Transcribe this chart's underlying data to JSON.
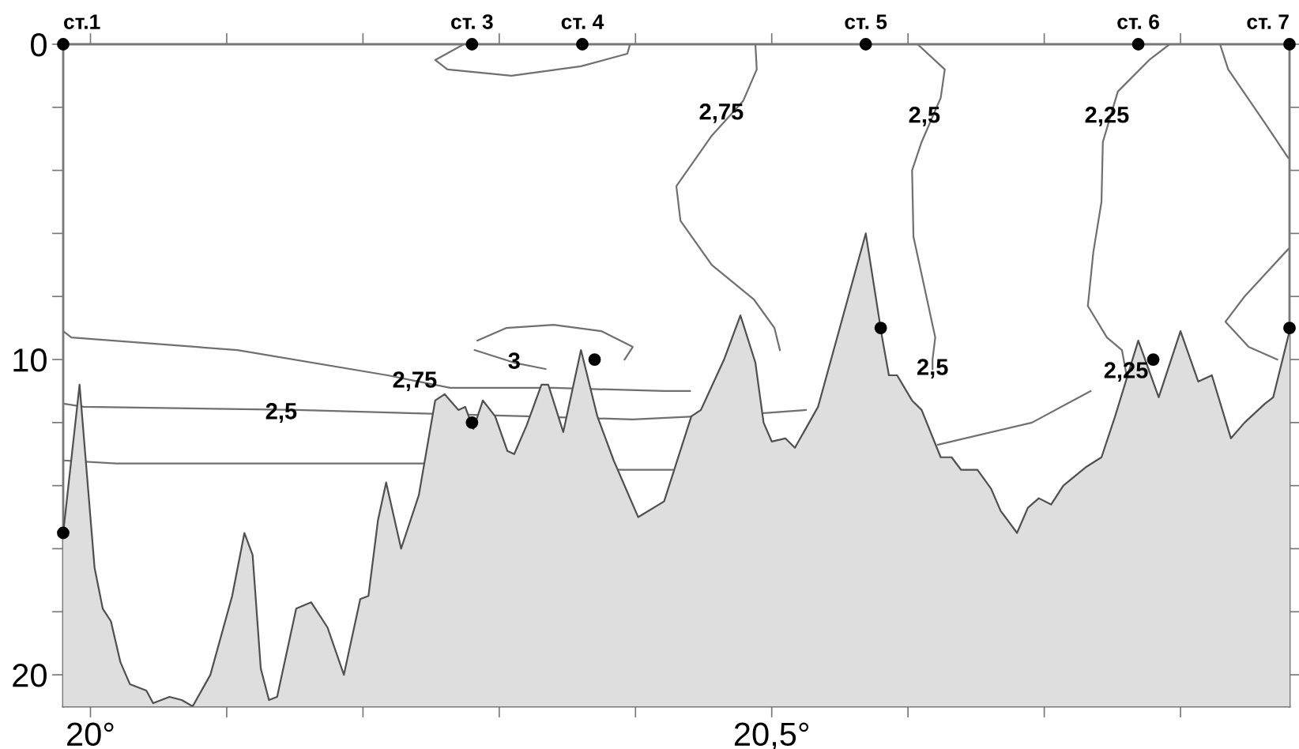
{
  "chart_data": {
    "type": "line",
    "xlim": [
      19.98,
      20.88
    ],
    "ylim": [
      21.0,
      0
    ],
    "xticks": [
      {
        "value": 20.0,
        "label": "20°"
      },
      {
        "value": 20.1,
        "label": null
      },
      {
        "value": 20.2,
        "label": null
      },
      {
        "value": 20.3,
        "label": null
      },
      {
        "value": 20.4,
        "label": null
      },
      {
        "value": 20.5,
        "label": "20,5°"
      },
      {
        "value": 20.6,
        "label": null
      },
      {
        "value": 20.7,
        "label": null
      },
      {
        "value": 20.8,
        "label": null
      }
    ],
    "yticks": [
      0,
      {
        "value": 2,
        "label": null
      },
      {
        "value": 4,
        "label": null
      },
      {
        "value": 6,
        "label": null
      },
      {
        "value": 8,
        "label": null
      },
      10,
      {
        "value": 12,
        "label": null
      },
      {
        "value": 14,
        "label": null
      },
      {
        "value": 16,
        "label": null
      },
      {
        "value": 18,
        "label": null
      },
      20
    ],
    "grid": false,
    "series": [
      {
        "type": "line",
        "color": "#505050",
        "x": [
          19.98,
          19.992,
          20.003,
          20.009,
          20.015,
          20.022,
          20.029,
          20.041,
          20.046,
          20.058,
          20.067,
          20.075,
          20.088,
          20.104,
          20.113,
          20.119,
          20.125,
          20.131,
          20.137,
          20.151,
          20.162,
          20.174,
          20.186,
          20.198,
          20.204,
          20.211,
          20.217,
          20.228,
          20.241,
          20.253,
          20.26,
          20.27,
          20.275,
          20.281,
          20.288,
          20.297,
          20.306,
          20.311,
          20.32,
          20.331,
          20.336,
          20.347,
          20.36,
          20.372,
          20.384,
          20.402,
          20.421,
          20.441,
          20.448,
          20.465,
          20.477,
          20.488,
          20.494,
          20.5,
          20.51,
          20.517,
          20.534,
          20.569,
          20.581,
          20.586,
          20.592,
          20.603,
          20.61,
          20.624,
          20.632,
          20.639,
          20.651,
          20.661,
          20.668,
          20.68,
          20.688,
          20.696,
          20.705,
          20.714,
          20.731,
          20.742,
          20.752,
          20.769,
          20.784,
          20.8,
          20.813,
          20.823,
          20.837,
          20.847,
          20.862,
          20.868,
          20.88
        ],
        "values": [
          15.5,
          10.8,
          16.6,
          17.9,
          18.3,
          19.6,
          20.3,
          20.5,
          20.9,
          20.7,
          20.8,
          21.0,
          20.0,
          17.5,
          15.5,
          16.2,
          19.8,
          20.8,
          20.7,
          17.9,
          17.7,
          18.5,
          20.0,
          17.6,
          17.5,
          15.1,
          13.9,
          16.0,
          14.3,
          11.3,
          11.1,
          11.6,
          11.5,
          12.2,
          11.3,
          11.8,
          12.9,
          13.0,
          12.1,
          10.8,
          10.8,
          12.3,
          9.7,
          11.8,
          13.2,
          15.0,
          14.5,
          11.8,
          11.6,
          10.0,
          8.6,
          10.1,
          12.0,
          12.6,
          12.5,
          12.8,
          11.5,
          6.0,
          9.3,
          10.5,
          10.5,
          11.3,
          11.6,
          13.1,
          13.1,
          13.5,
          13.5,
          14.1,
          14.8,
          15.5,
          14.7,
          14.4,
          14.6,
          14.0,
          13.4,
          13.1,
          11.8,
          9.4,
          11.2,
          9.1,
          10.7,
          10.5,
          12.5,
          12.0,
          11.4,
          11.2,
          9.1
        ]
      },
      {
        "type": "line",
        "color": "#707070",
        "x": [
          19.98,
          19.986,
          20.108,
          20.218,
          20.264,
          20.34,
          20.421,
          20.44
        ],
        "values": [
          9.1,
          9.3,
          9.7,
          10.5,
          10.9,
          10.9,
          11.0,
          11.0
        ]
      },
      {
        "type": "line",
        "color": "#707070",
        "x": [
          20.488,
          20.489,
          20.479,
          20.456,
          20.43,
          20.433,
          20.456,
          20.487,
          20.502,
          20.506
        ],
        "values": [
          0,
          0.8,
          1.8,
          2.9,
          4.5,
          5.6,
          7.0,
          8.1,
          9.0,
          9.7
        ]
      },
      {
        "type": "line",
        "color": "#707070",
        "x": [
          19.98,
          19.995,
          20.152,
          20.32,
          20.398,
          20.494,
          20.525
        ],
        "values": [
          11.4,
          11.5,
          11.6,
          11.8,
          11.9,
          11.7,
          11.6
        ]
      },
      {
        "color": "#707070",
        "x": [
          20.607,
          20.627,
          20.624,
          20.61,
          20.603,
          20.604,
          20.62,
          20.618,
          20.618
        ],
        "values": [
          0,
          0.8,
          1.7,
          3.1,
          4.0,
          6.1,
          9.3,
          10.0,
          10.3
        ]
      },
      {
        "type": "line",
        "color": "#707070",
        "x": [
          19.98,
          20.019,
          20.244,
          20.39,
          20.427
        ],
        "values": [
          13.2,
          13.3,
          13.3,
          13.5,
          13.5
        ]
      },
      {
        "color": "#707070",
        "x": [
          20.284,
          20.305,
          20.34,
          20.375,
          20.398,
          20.392,
          20.363,
          20.334,
          20.311,
          20.282
        ],
        "values": [
          9.4,
          9.0,
          8.9,
          9.1,
          9.6,
          10.0,
          null,
          10.3,
          10.1,
          9.7
        ]
      },
      {
        "type": "line",
        "color": "#707070",
        "x": [
          20.274,
          20.253,
          20.262,
          20.309,
          20.36,
          20.394,
          20.396
        ],
        "values": [
          0,
          0.5,
          0.8,
          1.0,
          0.7,
          0.3,
          0
        ]
      },
      {
        "type": "line",
        "color": "#707070",
        "x": [
          20.792,
          20.777,
          20.754,
          20.743,
          20.742,
          20.736,
          20.732,
          20.746,
          20.757,
          20.76
        ],
        "values": [
          0,
          0.5,
          1.5,
          3.1,
          5.0,
          6.6,
          8.3,
          9.3,
          9.7,
          10.4
        ]
      },
      {
        "type": "line",
        "color": "#707070",
        "x": [
          20.734,
          20.691,
          20.622
        ],
        "values": [
          11.0,
          12.0,
          12.7
        ]
      },
      {
        "type": "line",
        "color": "#707070",
        "x": [
          20.829,
          20.835,
          20.862,
          20.879
        ],
        "values": [
          0,
          0.8,
          2.5,
          3.6
        ]
      },
      {
        "type": "line",
        "color": "#707070",
        "x": [
          20.879,
          20.847,
          20.833,
          20.85,
          20.871
        ],
        "values": [
          6.5,
          8.0,
          8.8,
          9.6,
          10.0
        ]
      },
      {
        "type": "scatter",
        "color": "#000000",
        "marker": "circle",
        "x": [
          19.98,
          20.28,
          20.361,
          20.569,
          20.769,
          20.88,
          19.98,
          20.28,
          20.37,
          20.58,
          20.78,
          20.88
        ],
        "values": [
          0,
          0,
          0,
          0,
          0,
          0,
          15.5,
          12.0,
          10.0,
          9.0,
          10.0,
          9.0
        ]
      }
    ],
    "line_style": "solid",
    "annotations": [
      {
        "text": "2,75",
        "x": 20.238,
        "y": 10.7
      },
      {
        "text": "2,5",
        "x": 20.14,
        "y": 11.7
      },
      {
        "text": "3",
        "x": 20.311,
        "y": 10.1
      },
      {
        "text": "2,75",
        "x": 20.463,
        "y": 2.2
      },
      {
        "text": "2,5",
        "x": 20.612,
        "y": 2.3
      },
      {
        "text": "2,25",
        "x": 20.746,
        "y": 2.3
      },
      {
        "text": "2,5",
        "x": 20.618,
        "y": 10.3
      },
      {
        "text": "2,25",
        "x": 20.76,
        "y": 10.4
      },
      {
        "text": "ст.1",
        "x": 19.98,
        "y": 0
      },
      {
        "text": "ст. 3",
        "x": 20.28,
        "y": 0
      },
      {
        "text": "ст. 4",
        "x": 20.361,
        "y": 0
      },
      {
        "text": "ст. 5",
        "x": 20.569,
        "y": 0
      },
      {
        "text": "ст. 6",
        "x": 20.769,
        "y": 0
      },
      {
        "text": "ст. 7",
        "x": 20.88,
        "y": 0
      }
    ]
  }
}
